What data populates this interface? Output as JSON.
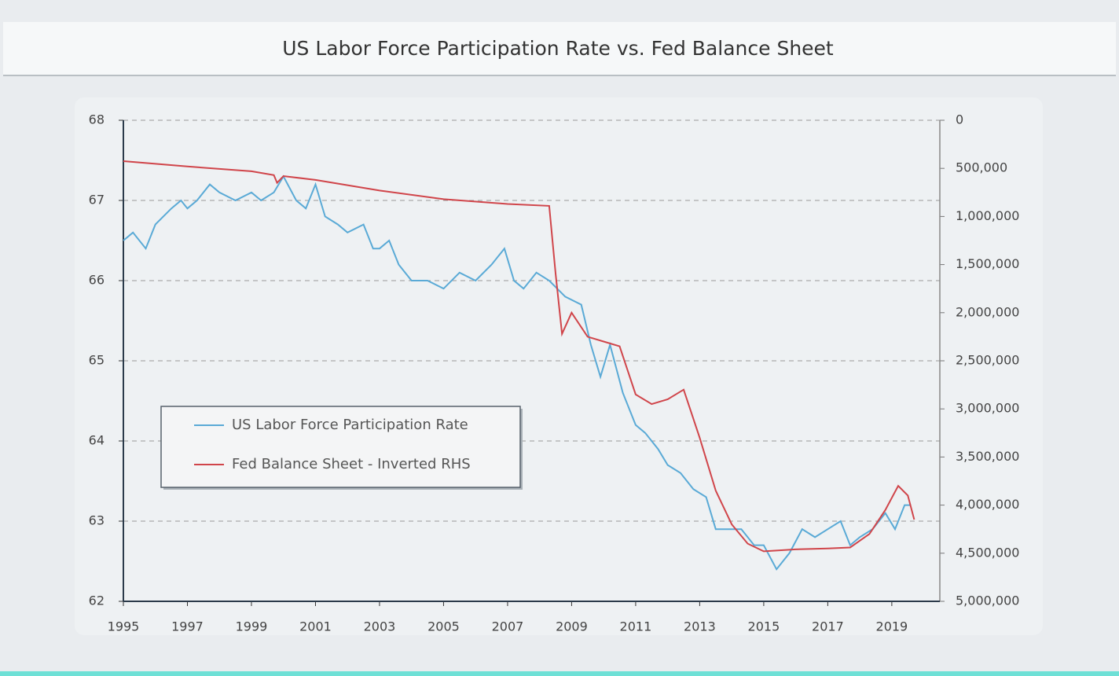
{
  "chart_data": {
    "type": "line",
    "title": "US Labor Force Participation Rate vs. Fed Balance Sheet",
    "xlim": [
      1995,
      2020.5
    ],
    "xticks": [
      1995,
      1997,
      1999,
      2001,
      2003,
      2005,
      2007,
      2009,
      2011,
      2013,
      2015,
      2017,
      2019
    ],
    "ylim": [
      62,
      68
    ],
    "yticks": [
      62,
      63,
      64,
      65,
      66,
      67,
      68
    ],
    "y2lim": [
      0,
      5000000
    ],
    "y2_inverted": true,
    "y2ticks": [
      0,
      {
        "value": 500000,
        "label": "500,000"
      },
      {
        "value": 1000000,
        "label": "1,000,000"
      },
      {
        "value": 1500000,
        "label": "1,500,000"
      },
      {
        "value": 2000000,
        "label": "2,000,000"
      },
      {
        "value": 2500000,
        "label": "2,500,000"
      },
      {
        "value": 3000000,
        "label": "3,000,000"
      },
      {
        "value": 3500000,
        "label": "3,500,000"
      },
      {
        "value": 4000000,
        "label": "4,000,000"
      },
      {
        "value": 4500000,
        "label": "4,500,000"
      },
      {
        "value": 5000000,
        "label": "5,000,000"
      }
    ],
    "grid": true,
    "legend": "center left",
    "series": [
      {
        "name": "US Labor Force Participation Rate",
        "color": "#5aaad6",
        "axis": "y",
        "x": [
          1995.0,
          1995.3,
          1995.7,
          1996.0,
          1996.5,
          1996.8,
          1997.0,
          1997.3,
          1997.7,
          1998.0,
          1998.5,
          1999.0,
          1999.3,
          1999.7,
          2000.0,
          2000.4,
          2000.7,
          2001.0,
          2001.3,
          2001.7,
          2002.0,
          2002.5,
          2002.8,
          2003.0,
          2003.3,
          2003.6,
          2004.0,
          2004.5,
          2005.0,
          2005.5,
          2006.0,
          2006.5,
          2006.9,
          2007.2,
          2007.5,
          2007.9,
          2008.3,
          2008.8,
          2009.3,
          2009.6,
          2009.9,
          2010.2,
          2010.6,
          2011.0,
          2011.3,
          2011.7,
          2012.0,
          2012.4,
          2012.8,
          2013.2,
          2013.5,
          2013.9,
          2014.3,
          2014.7,
          2015.0,
          2015.4,
          2015.8,
          2016.2,
          2016.6,
          2017.0,
          2017.4,
          2017.7,
          2018.0,
          2018.4,
          2018.8,
          2019.1,
          2019.4,
          2019.6
        ],
        "values": [
          66.5,
          66.6,
          66.4,
          66.7,
          66.9,
          67.0,
          66.9,
          67.0,
          67.2,
          67.1,
          67.0,
          67.1,
          67.0,
          67.1,
          67.3,
          67.0,
          66.9,
          67.2,
          66.8,
          66.7,
          66.6,
          66.7,
          66.4,
          66.4,
          66.5,
          66.2,
          66.0,
          66.0,
          65.9,
          66.1,
          66.0,
          66.2,
          66.4,
          66.0,
          65.9,
          66.1,
          66.0,
          65.8,
          65.7,
          65.2,
          64.8,
          65.2,
          64.6,
          64.2,
          64.1,
          63.9,
          63.7,
          63.6,
          63.4,
          63.3,
          62.9,
          62.9,
          62.9,
          62.7,
          62.7,
          62.4,
          62.6,
          62.9,
          62.8,
          62.9,
          63.0,
          62.7,
          62.8,
          62.9,
          63.1,
          62.9,
          63.2,
          63.2
        ]
      },
      {
        "name": "Fed Balance Sheet - Inverted RHS",
        "color": "#d0454a",
        "axis": "y2",
        "x": [
          1995.0,
          1997.0,
          1999.0,
          1999.7,
          1999.8,
          2000.0,
          2001.0,
          2003.0,
          2005.0,
          2007.0,
          2008.3,
          2008.5,
          2008.7,
          2009.0,
          2009.5,
          2010.0,
          2010.5,
          2011.0,
          2011.5,
          2012.0,
          2012.5,
          2013.0,
          2013.5,
          2014.0,
          2014.5,
          2015.0,
          2016.0,
          2017.0,
          2017.7,
          2018.3,
          2018.8,
          2019.2,
          2019.5,
          2019.7
        ],
        "values": [
          425000,
          480000,
          530000,
          570000,
          650000,
          580000,
          620000,
          730000,
          820000,
          870000,
          890000,
          1600000,
          2220000,
          2000000,
          2250000,
          2300000,
          2350000,
          2850000,
          2950000,
          2900000,
          2800000,
          3300000,
          3850000,
          4200000,
          4400000,
          4480000,
          4460000,
          4450000,
          4440000,
          4300000,
          4050000,
          3800000,
          3900000,
          4150000
        ]
      }
    ]
  }
}
